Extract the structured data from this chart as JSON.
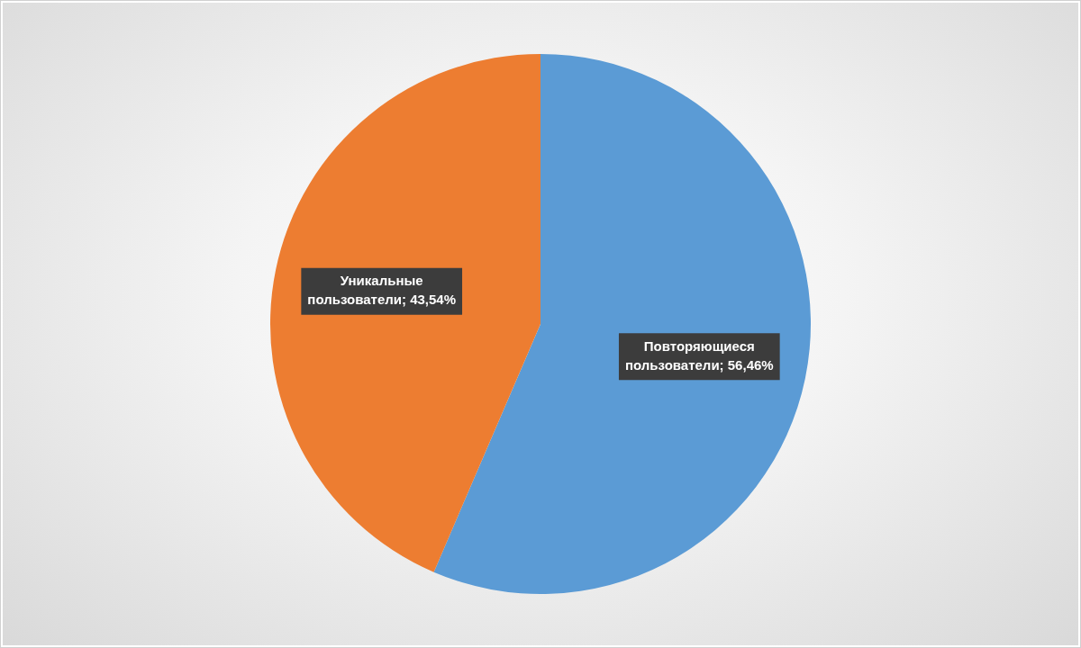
{
  "chart_data": {
    "type": "pie",
    "categories": [
      "Повторяющиеся пользователи",
      "Уникальные пользователи"
    ],
    "values": [
      56.46,
      43.54
    ],
    "colors": [
      "#5b9bd5",
      "#ed7d31"
    ],
    "value_labels": [
      "56,46%",
      "43,54%"
    ]
  }
}
